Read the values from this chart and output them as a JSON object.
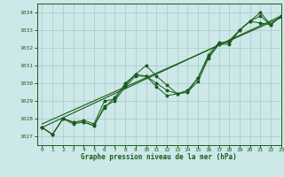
{
  "title": "Graphe pression niveau de la mer (hPa)",
  "bg_color": "#cce8e8",
  "grid_color": "#b0cccc",
  "line_color": "#1a5c1a",
  "marker_color": "#1a5c1a",
  "xlim": [
    -0.5,
    23
  ],
  "ylim": [
    1026.5,
    1034.5
  ],
  "xticks": [
    0,
    1,
    2,
    3,
    4,
    5,
    6,
    7,
    8,
    9,
    10,
    11,
    12,
    13,
    14,
    15,
    16,
    17,
    18,
    19,
    20,
    21,
    22,
    23
  ],
  "yticks": [
    1027,
    1028,
    1029,
    1030,
    1031,
    1032,
    1033,
    1034
  ],
  "series": [
    [
      1027.5,
      1027.1,
      1028.0,
      1027.8,
      1027.9,
      1027.7,
      1029.0,
      1029.1,
      1030.0,
      1030.5,
      1031.0,
      1030.4,
      1029.9,
      1029.4,
      1029.5,
      1030.3,
      1031.5,
      1032.2,
      1032.4,
      1033.0,
      1033.5,
      1033.8,
      1033.3,
      1033.8
    ],
    [
      1027.5,
      1027.1,
      1028.0,
      1027.8,
      1027.8,
      1027.6,
      1028.7,
      1029.0,
      1029.8,
      1030.4,
      1030.4,
      1029.8,
      1029.3,
      1029.4,
      1029.5,
      1030.1,
      1031.4,
      1032.2,
      1032.2,
      1033.0,
      1033.5,
      1033.4,
      1033.3,
      1033.8
    ],
    [
      1027.5,
      1027.1,
      1028.0,
      1027.7,
      1027.8,
      1027.6,
      1028.6,
      1029.2,
      1029.9,
      1030.5,
      1030.4,
      1030.0,
      1029.6,
      1029.4,
      1029.6,
      1030.3,
      1031.6,
      1032.3,
      1032.3,
      1033.0,
      1033.5,
      1034.0,
      1033.3,
      1033.8
    ]
  ],
  "trend_series": [
    [
      1027.5,
      1033.8
    ],
    [
      0,
      23
    ]
  ]
}
